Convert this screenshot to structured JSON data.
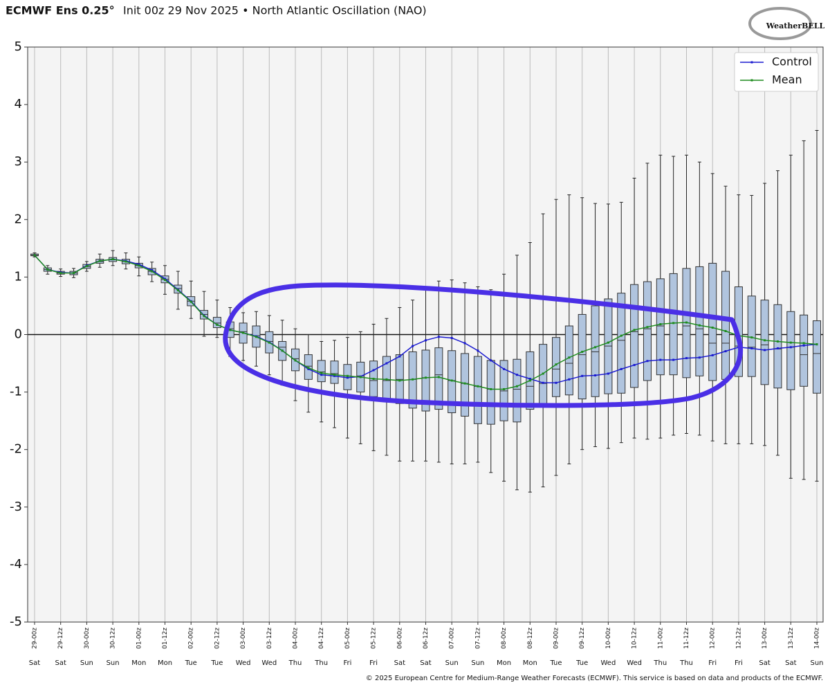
{
  "chart_data": {
    "type": "box",
    "title": "ECMWF Ens 0.25°",
    "subtitle": "Init 00z 29 Nov 2025 • North Atlantic Oscillation (NAO)",
    "logo": "WeatherBELL",
    "footer": "© 2025 European Centre for Medium-Range Weather Forecasts (ECMWF). This service is based on data and products of the ECMWF.",
    "categories": [
      "29-00z",
      null,
      "29-12z",
      null,
      "30-00z",
      null,
      "30-12z",
      null,
      "01-00z",
      null,
      "01-12z",
      null,
      "02-00z",
      null,
      "02-12z",
      null,
      "03-00z",
      null,
      "03-12z",
      null,
      "04-00z",
      null,
      "04-12z",
      null,
      "05-00z",
      null,
      "05-12z",
      null,
      "06-00z",
      null,
      "06-12z",
      null,
      "07-00z",
      null,
      "07-12z",
      null,
      "08-00z",
      null,
      "08-12z",
      null,
      "09-00z",
      null,
      "09-12z",
      null,
      "10-00z",
      null,
      "10-12z",
      null,
      "11-00z",
      null,
      "11-12z",
      null,
      "12-00z",
      null,
      "12-12z",
      null,
      "13-00z",
      null,
      "13-12z",
      null,
      "14-00z"
    ],
    "weekdays": [
      "Sat",
      null,
      "Sat",
      null,
      "Sun",
      null,
      "Sun",
      null,
      "Mon",
      null,
      "Mon",
      null,
      "Tue",
      null,
      "Tue",
      null,
      "Wed",
      null,
      "Wed",
      null,
      "Thu",
      null,
      "Thu",
      null,
      "Fri",
      null,
      "Fri",
      null,
      "Sat",
      null,
      "Sat",
      null,
      "Sun",
      null,
      "Sun",
      null,
      "Mon",
      null,
      "Mon",
      null,
      "Tue",
      null,
      "Tue",
      null,
      "Wed",
      null,
      "Wed",
      null,
      "Thu",
      null,
      "Thu",
      null,
      "Fri",
      null,
      "Fri",
      null,
      "Sat",
      null,
      "Sat",
      null,
      "Sun"
    ],
    "boxes": {
      "color": "#b0c4de",
      "min": [
        1.35,
        1.05,
        1.01,
        0.99,
        1.1,
        1.17,
        1.2,
        1.14,
        1.02,
        0.92,
        0.7,
        0.44,
        0.28,
        -0.03,
        -0.05,
        -0.38,
        -0.45,
        -0.55,
        -0.7,
        -0.88,
        -1.15,
        -1.35,
        -1.52,
        -1.62,
        -1.8,
        -1.9,
        -2.02,
        -2.1,
        -2.2,
        -2.2,
        -2.2,
        -2.22,
        -2.25,
        -2.25,
        -2.22,
        -2.4,
        -2.55,
        -2.7,
        -2.74,
        -2.65,
        -2.45,
        -2.25,
        -2.0,
        -1.95,
        -1.98,
        -1.88,
        -1.8,
        -1.82,
        -1.8,
        -1.75,
        -1.72,
        -1.75,
        -1.85,
        -1.9,
        -1.9,
        -1.9,
        -1.93,
        -2.1,
        -2.5,
        -2.52,
        -2.55
      ],
      "q1": [
        1.37,
        1.1,
        1.05,
        1.04,
        1.15,
        1.24,
        1.27,
        1.23,
        1.16,
        1.04,
        0.9,
        0.72,
        0.5,
        0.27,
        0.12,
        -0.05,
        -0.15,
        -0.22,
        -0.32,
        -0.45,
        -0.63,
        -0.78,
        -0.82,
        -0.85,
        -0.96,
        -1.0,
        -1.08,
        -1.15,
        -1.2,
        -1.28,
        -1.33,
        -1.3,
        -1.36,
        -1.42,
        -1.55,
        -1.56,
        -1.5,
        -1.52,
        -1.3,
        -1.2,
        -1.08,
        -1.05,
        -1.12,
        -1.08,
        -1.03,
        -1.02,
        -0.92,
        -0.8,
        -0.7,
        -0.7,
        -0.75,
        -0.72,
        -0.8,
        -0.78,
        -0.73,
        -0.73,
        -0.87,
        -0.93,
        -0.96,
        -0.9,
        -1.02
      ],
      "median": [
        1.38,
        1.13,
        1.07,
        1.07,
        1.18,
        1.27,
        1.3,
        1.27,
        1.2,
        1.1,
        0.96,
        0.8,
        0.58,
        0.35,
        0.2,
        0.1,
        0.05,
        -0.02,
        -0.12,
        -0.22,
        -0.42,
        -0.55,
        -0.65,
        -0.68,
        -0.72,
        -0.72,
        -0.8,
        -0.8,
        -0.78,
        -0.78,
        -0.75,
        -0.7,
        -0.8,
        -0.85,
        -0.9,
        -0.95,
        -0.98,
        -0.95,
        -0.9,
        -0.85,
        -0.6,
        -0.5,
        -0.35,
        -0.3,
        -0.2,
        -0.1,
        0.05,
        0.1,
        0.15,
        0.2,
        0.15,
        0.1,
        -0.15,
        -0.15,
        -0.2,
        -0.22,
        -0.18,
        -0.25,
        -0.22,
        -0.35,
        -0.33
      ],
      "q3": [
        1.4,
        1.16,
        1.1,
        1.1,
        1.22,
        1.31,
        1.34,
        1.31,
        1.24,
        1.15,
        1.02,
        0.86,
        0.66,
        0.42,
        0.3,
        0.22,
        0.2,
        0.15,
        0.05,
        -0.12,
        -0.25,
        -0.35,
        -0.45,
        -0.46,
        -0.52,
        -0.48,
        -0.46,
        -0.38,
        -0.35,
        -0.3,
        -0.27,
        -0.23,
        -0.28,
        -0.33,
        -0.38,
        -0.45,
        -0.45,
        -0.43,
        -0.3,
        -0.17,
        -0.05,
        0.15,
        0.35,
        0.5,
        0.62,
        0.72,
        0.87,
        0.92,
        0.97,
        1.06,
        1.15,
        1.18,
        1.24,
        1.1,
        0.83,
        0.67,
        0.6,
        0.52,
        0.4,
        0.34,
        0.24
      ],
      "max": [
        1.42,
        1.2,
        1.14,
        1.15,
        1.27,
        1.4,
        1.46,
        1.42,
        1.35,
        1.26,
        1.2,
        1.1,
        0.93,
        0.75,
        0.6,
        0.47,
        0.38,
        0.4,
        0.33,
        0.25,
        0.1,
        0.0,
        -0.12,
        -0.1,
        -0.05,
        0.05,
        0.18,
        0.28,
        0.47,
        0.6,
        0.8,
        0.93,
        0.95,
        0.9,
        0.83,
        0.78,
        1.05,
        1.38,
        1.6,
        2.1,
        2.35,
        2.43,
        2.38,
        2.28,
        2.27,
        2.3,
        2.72,
        2.98,
        3.12,
        3.1,
        3.12,
        3.0,
        2.8,
        2.58,
        2.43,
        2.42,
        2.63,
        2.85,
        3.12,
        3.37,
        3.55
      ]
    },
    "series": [
      {
        "name": "Control",
        "color": "#1a1ad0",
        "values": [
          1.38,
          1.13,
          1.08,
          1.07,
          1.2,
          1.28,
          1.31,
          1.28,
          1.22,
          1.12,
          0.97,
          0.78,
          0.58,
          0.33,
          0.17,
          0.08,
          0.03,
          -0.03,
          -0.13,
          -0.28,
          -0.45,
          -0.6,
          -0.7,
          -0.72,
          -0.75,
          -0.73,
          -0.62,
          -0.5,
          -0.38,
          -0.2,
          -0.1,
          -0.04,
          -0.06,
          -0.15,
          -0.28,
          -0.45,
          -0.6,
          -0.7,
          -0.77,
          -0.84,
          -0.84,
          -0.78,
          -0.72,
          -0.71,
          -0.68,
          -0.6,
          -0.53,
          -0.46,
          -0.44,
          -0.44,
          -0.41,
          -0.4,
          -0.36,
          -0.29,
          -0.22,
          -0.24,
          -0.27,
          -0.24,
          -0.22,
          -0.19,
          -0.17
        ]
      },
      {
        "name": "Mean",
        "color": "#1e8c1e",
        "values": [
          1.38,
          1.13,
          1.07,
          1.07,
          1.19,
          1.28,
          1.31,
          1.27,
          1.2,
          1.1,
          0.95,
          0.77,
          0.57,
          0.32,
          0.17,
          0.08,
          0.03,
          -0.04,
          -0.14,
          -0.28,
          -0.45,
          -0.58,
          -0.67,
          -0.7,
          -0.72,
          -0.74,
          -0.77,
          -0.78,
          -0.8,
          -0.78,
          -0.75,
          -0.74,
          -0.8,
          -0.85,
          -0.9,
          -0.95,
          -0.95,
          -0.9,
          -0.8,
          -0.68,
          -0.52,
          -0.4,
          -0.3,
          -0.22,
          -0.14,
          -0.02,
          0.08,
          0.13,
          0.18,
          0.2,
          0.21,
          0.16,
          0.12,
          0.06,
          -0.02,
          -0.05,
          -0.1,
          -0.12,
          -0.14,
          -0.15,
          -0.17
        ]
      }
    ],
    "ylim": [
      -5,
      5
    ],
    "yticks": [
      -5,
      -4,
      -3,
      -2,
      -1,
      0,
      1,
      2,
      3,
      4,
      5
    ],
    "zero_line": true,
    "grid": true,
    "legend": "upper right"
  }
}
